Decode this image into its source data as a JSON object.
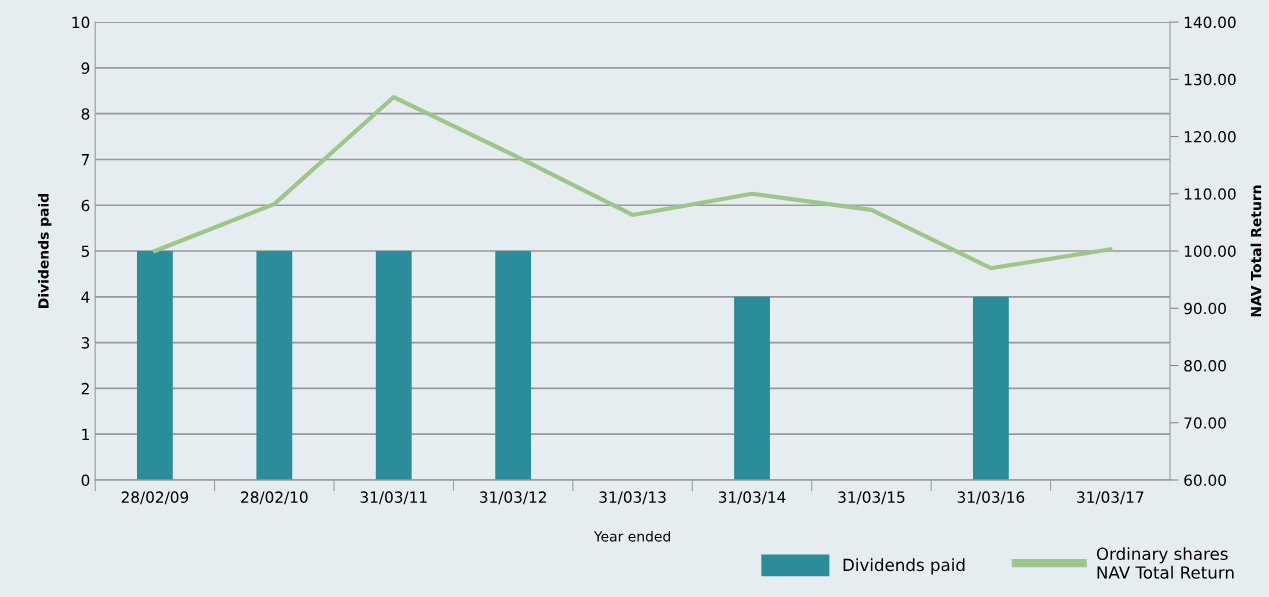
{
  "chart_data": {
    "type": "bar",
    "xlabel": "Year ended",
    "ylabel": "Dividends paid",
    "y2label": "NAV Total Return",
    "categories": [
      "28/02/09",
      "28/02/10",
      "31/03/11",
      "31/03/12",
      "31/03/13",
      "31/03/14",
      "31/03/15",
      "31/03/16",
      "31/03/17"
    ],
    "series": [
      {
        "name": "Dividends paid",
        "color": "#2b8c9c",
        "values": [
          5,
          5,
          5,
          5,
          null,
          4,
          null,
          4,
          null
        ]
      },
      {
        "name": "Ordinary shares\nNAV Total Return",
        "type": "line",
        "axis": "y2",
        "color": "#9cc68a",
        "values": [
          100.0,
          108.2,
          126.9,
          116.8,
          106.3,
          110.0,
          107.2,
          97.0,
          100.3
        ]
      }
    ],
    "ylim": [
      0,
      10
    ],
    "yticks": [
      0,
      1,
      2,
      3,
      4,
      5,
      6,
      7,
      8,
      9,
      10
    ],
    "y2lim": [
      60,
      140
    ],
    "y2ticks": [
      {
        "value": 60,
        "label": "60.00"
      },
      {
        "value": 70,
        "label": "70.00"
      },
      {
        "value": 80,
        "label": "80.00"
      },
      {
        "value": 90,
        "label": "90.00"
      },
      {
        "value": 100,
        "label": "100.00"
      },
      {
        "value": 110,
        "label": "110.00"
      },
      {
        "value": 120,
        "label": "120.00"
      },
      {
        "value": 130,
        "label": "130.00"
      },
      {
        "value": 140,
        "label": "140.00"
      }
    ],
    "grid": "y",
    "legend": "bottom right",
    "marker": "none",
    "line_style": "solid"
  }
}
